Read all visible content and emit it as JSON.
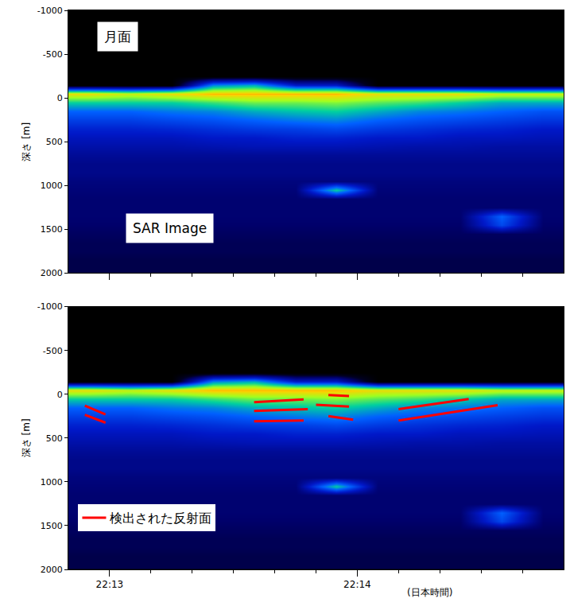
{
  "chart_data": [
    {
      "type": "heatmap",
      "labels": [
        "月面",
        "SAR Image"
      ],
      "ylabel": "深さ [m]",
      "x": [
        -5,
        5,
        15,
        25,
        35,
        45,
        55,
        65,
        75,
        85,
        95,
        105
      ],
      "y": [
        -950,
        -850,
        -750,
        -650,
        -550,
        -450,
        -350,
        -250,
        -150,
        -50,
        50,
        150,
        250,
        350,
        450,
        550,
        650,
        750,
        850,
        950,
        1050,
        1150,
        1250,
        1350,
        1450,
        1550,
        1650,
        1750,
        1850,
        1950
      ],
      "z": [
        [
          0,
          0,
          0,
          0,
          0,
          0,
          0,
          0,
          0,
          0,
          0,
          0
        ],
        [
          0,
          0,
          0,
          0,
          0,
          0,
          0,
          0,
          0,
          0,
          0,
          0
        ],
        [
          0,
          0,
          0,
          0,
          0,
          0,
          0,
          0,
          0,
          0,
          0,
          0
        ],
        [
          0,
          0,
          0,
          0,
          0,
          0,
          0,
          0,
          0,
          0,
          0,
          0
        ],
        [
          0,
          0,
          0,
          0,
          0,
          0,
          0,
          0,
          0,
          0,
          0,
          0
        ],
        [
          0,
          0,
          0,
          0,
          0,
          0,
          0,
          0,
          0,
          0,
          0,
          0
        ],
        [
          0,
          0,
          0,
          0,
          0,
          0,
          0,
          0,
          0,
          0,
          0,
          0
        ],
        [
          0,
          0,
          0,
          0,
          0,
          0,
          0,
          0,
          0,
          0,
          0,
          0
        ],
        [
          0,
          0,
          0,
          0.5,
          0.55,
          0.3,
          0.3,
          0,
          0,
          0,
          0,
          0
        ],
        [
          0.85,
          0.8,
          0.85,
          0.9,
          0.9,
          0.9,
          0.9,
          0.85,
          0.85,
          0.85,
          0.8,
          0.8
        ],
        [
          0.6,
          0.6,
          0.6,
          0.65,
          0.7,
          0.7,
          0.72,
          0.68,
          0.65,
          0.6,
          0.55,
          0.55
        ],
        [
          0.45,
          0.45,
          0.48,
          0.5,
          0.55,
          0.58,
          0.6,
          0.55,
          0.5,
          0.48,
          0.45,
          0.42
        ],
        [
          0.38,
          0.38,
          0.4,
          0.42,
          0.45,
          0.48,
          0.5,
          0.45,
          0.42,
          0.4,
          0.38,
          0.36
        ],
        [
          0.32,
          0.32,
          0.33,
          0.35,
          0.37,
          0.38,
          0.4,
          0.37,
          0.35,
          0.33,
          0.32,
          0.3
        ],
        [
          0.28,
          0.28,
          0.28,
          0.3,
          0.3,
          0.32,
          0.32,
          0.3,
          0.3,
          0.28,
          0.28,
          0.27
        ],
        [
          0.25,
          0.25,
          0.25,
          0.26,
          0.27,
          0.27,
          0.27,
          0.26,
          0.25,
          0.25,
          0.24,
          0.24
        ],
        [
          0.22,
          0.22,
          0.22,
          0.22,
          0.22,
          0.22,
          0.22,
          0.22,
          0.22,
          0.22,
          0.22,
          0.22
        ],
        [
          0.2,
          0.2,
          0.2,
          0.2,
          0.2,
          0.2,
          0.2,
          0.2,
          0.2,
          0.2,
          0.2,
          0.2
        ],
        [
          0.2,
          0.2,
          0.2,
          0.2,
          0.2,
          0.2,
          0.2,
          0.2,
          0.2,
          0.2,
          0.2,
          0.2
        ],
        [
          0.18,
          0.18,
          0.18,
          0.18,
          0.18,
          0.18,
          0.18,
          0.18,
          0.18,
          0.18,
          0.18,
          0.18
        ],
        [
          0.17,
          0.17,
          0.17,
          0.17,
          0.17,
          0.17,
          0.6,
          0.17,
          0.17,
          0.17,
          0.17,
          0.17
        ],
        [
          0.16,
          0.16,
          0.16,
          0.16,
          0.16,
          0.16,
          0.16,
          0.16,
          0.16,
          0.16,
          0.16,
          0.16
        ],
        [
          0.16,
          0.16,
          0.16,
          0.16,
          0.16,
          0.16,
          0.16,
          0.16,
          0.16,
          0.16,
          0.16,
          0.16
        ],
        [
          0.16,
          0.16,
          0.16,
          0.16,
          0.16,
          0.16,
          0.16,
          0.16,
          0.16,
          0.16,
          0.45,
          0.16
        ],
        [
          0.15,
          0.15,
          0.15,
          0.15,
          0.15,
          0.15,
          0.15,
          0.15,
          0.15,
          0.15,
          0.4,
          0.15
        ],
        [
          0.14,
          0.14,
          0.14,
          0.14,
          0.14,
          0.14,
          0.14,
          0.14,
          0.14,
          0.14,
          0.14,
          0.14
        ],
        [
          0.13,
          0.13,
          0.13,
          0.13,
          0.13,
          0.13,
          0.13,
          0.13,
          0.13,
          0.13,
          0.13,
          0.13
        ],
        [
          0.13,
          0.13,
          0.13,
          0.13,
          0.13,
          0.13,
          0.13,
          0.13,
          0.13,
          0.13,
          0.13,
          0.13
        ],
        [
          0.12,
          0.12,
          0.12,
          0.12,
          0.12,
          0.12,
          0.12,
          0.12,
          0.12,
          0.12,
          0.12,
          0.12
        ],
        [
          0.12,
          0.12,
          0.12,
          0.12,
          0.12,
          0.12,
          0.12,
          0.12,
          0.12,
          0.12,
          0.12,
          0.12
        ]
      ],
      "zlim": [
        0,
        1
      ],
      "xlim": [
        -10,
        110
      ],
      "xticks": [
        0,
        60
      ],
      "xticks_minor": [
        10,
        20,
        30,
        40,
        50,
        70,
        80,
        90,
        100
      ],
      "ylim": [
        2000,
        -1000
      ],
      "yticks": [
        -1000,
        -500,
        0,
        500,
        1000,
        1500,
        2000
      ],
      "tick_labels": "y"
    },
    {
      "type": "heatmap",
      "ylabel": "深さ [m]",
      "xlabel": "(日本時間)",
      "x": [
        -5,
        5,
        15,
        25,
        35,
        45,
        55,
        65,
        75,
        85,
        95,
        105
      ],
      "y": [
        -950,
        -850,
        -750,
        -650,
        -550,
        -450,
        -350,
        -250,
        -150,
        -50,
        50,
        150,
        250,
        350,
        450,
        550,
        650,
        750,
        850,
        950,
        1050,
        1150,
        1250,
        1350,
        1450,
        1550,
        1650,
        1750,
        1850,
        1950
      ],
      "z": [
        [
          0,
          0,
          0,
          0,
          0,
          0,
          0,
          0,
          0,
          0,
          0,
          0
        ],
        [
          0,
          0,
          0,
          0,
          0,
          0,
          0,
          0,
          0,
          0,
          0,
          0
        ],
        [
          0,
          0,
          0,
          0,
          0,
          0,
          0,
          0,
          0,
          0,
          0,
          0
        ],
        [
          0,
          0,
          0,
          0,
          0,
          0,
          0,
          0,
          0,
          0,
          0,
          0
        ],
        [
          0,
          0,
          0,
          0,
          0,
          0,
          0,
          0,
          0,
          0,
          0,
          0
        ],
        [
          0,
          0,
          0,
          0,
          0,
          0,
          0,
          0,
          0,
          0,
          0,
          0
        ],
        [
          0,
          0,
          0,
          0,
          0,
          0,
          0,
          0,
          0,
          0,
          0,
          0
        ],
        [
          0,
          0,
          0,
          0,
          0,
          0,
          0,
          0,
          0,
          0,
          0,
          0
        ],
        [
          0,
          0,
          0,
          0.5,
          0.55,
          0.3,
          0.3,
          0,
          0,
          0,
          0,
          0
        ],
        [
          0.85,
          0.8,
          0.85,
          0.9,
          0.9,
          0.9,
          0.9,
          0.85,
          0.85,
          0.85,
          0.8,
          0.8
        ],
        [
          0.6,
          0.6,
          0.6,
          0.65,
          0.7,
          0.7,
          0.72,
          0.68,
          0.65,
          0.6,
          0.55,
          0.55
        ],
        [
          0.45,
          0.45,
          0.48,
          0.5,
          0.55,
          0.58,
          0.6,
          0.55,
          0.5,
          0.48,
          0.45,
          0.42
        ],
        [
          0.38,
          0.38,
          0.4,
          0.42,
          0.45,
          0.48,
          0.5,
          0.45,
          0.42,
          0.4,
          0.38,
          0.36
        ],
        [
          0.32,
          0.32,
          0.33,
          0.35,
          0.37,
          0.38,
          0.4,
          0.37,
          0.35,
          0.33,
          0.32,
          0.3
        ],
        [
          0.28,
          0.28,
          0.28,
          0.3,
          0.3,
          0.32,
          0.32,
          0.3,
          0.3,
          0.28,
          0.28,
          0.27
        ],
        [
          0.25,
          0.25,
          0.25,
          0.26,
          0.27,
          0.27,
          0.27,
          0.26,
          0.25,
          0.25,
          0.24,
          0.24
        ],
        [
          0.22,
          0.22,
          0.22,
          0.22,
          0.22,
          0.22,
          0.22,
          0.22,
          0.22,
          0.22,
          0.22,
          0.22
        ],
        [
          0.2,
          0.2,
          0.2,
          0.2,
          0.2,
          0.2,
          0.2,
          0.2,
          0.2,
          0.2,
          0.2,
          0.2
        ],
        [
          0.2,
          0.2,
          0.2,
          0.2,
          0.2,
          0.2,
          0.2,
          0.2,
          0.2,
          0.2,
          0.2,
          0.2
        ],
        [
          0.18,
          0.18,
          0.18,
          0.18,
          0.18,
          0.18,
          0.18,
          0.18,
          0.18,
          0.18,
          0.18,
          0.18
        ],
        [
          0.17,
          0.17,
          0.17,
          0.17,
          0.17,
          0.17,
          0.6,
          0.17,
          0.17,
          0.17,
          0.17,
          0.17
        ],
        [
          0.16,
          0.16,
          0.16,
          0.16,
          0.16,
          0.16,
          0.16,
          0.16,
          0.16,
          0.16,
          0.16,
          0.16
        ],
        [
          0.16,
          0.16,
          0.16,
          0.16,
          0.16,
          0.16,
          0.16,
          0.16,
          0.16,
          0.16,
          0.16,
          0.16
        ],
        [
          0.16,
          0.16,
          0.16,
          0.16,
          0.16,
          0.16,
          0.16,
          0.16,
          0.16,
          0.16,
          0.45,
          0.16
        ],
        [
          0.15,
          0.15,
          0.15,
          0.15,
          0.15,
          0.15,
          0.15,
          0.15,
          0.15,
          0.15,
          0.4,
          0.15
        ],
        [
          0.14,
          0.14,
          0.14,
          0.14,
          0.14,
          0.14,
          0.14,
          0.14,
          0.14,
          0.14,
          0.14,
          0.14
        ],
        [
          0.13,
          0.13,
          0.13,
          0.13,
          0.13,
          0.13,
          0.13,
          0.13,
          0.13,
          0.13,
          0.13,
          0.13
        ],
        [
          0.13,
          0.13,
          0.13,
          0.13,
          0.13,
          0.13,
          0.13,
          0.13,
          0.13,
          0.13,
          0.13,
          0.13
        ],
        [
          0.12,
          0.12,
          0.12,
          0.12,
          0.12,
          0.12,
          0.12,
          0.12,
          0.12,
          0.12,
          0.12,
          0.12
        ],
        [
          0.12,
          0.12,
          0.12,
          0.12,
          0.12,
          0.12,
          0.12,
          0.12,
          0.12,
          0.12,
          0.12,
          0.12
        ]
      ],
      "zlim": [
        0,
        1
      ],
      "xlim": [
        -10,
        110
      ],
      "xticks": [
        {
          "value": 0,
          "label": "22:13"
        },
        {
          "value": 60,
          "label": "22:14"
        }
      ],
      "xticks_minor": [
        10,
        20,
        30,
        40,
        50,
        70,
        80,
        90,
        100
      ],
      "ylim": [
        2000,
        -1000
      ],
      "yticks": [
        -1000,
        -500,
        0,
        500,
        1000,
        1500,
        2000
      ],
      "legend": "lower left",
      "series": [
        {
          "name": "検出された反射面",
          "type": "line",
          "color": "#ff0000",
          "x": [
            -6,
            -1,
            null,
            -6,
            -1,
            null,
            35,
            47,
            null,
            35,
            48,
            null,
            35,
            47,
            null,
            53,
            58,
            null,
            50,
            58,
            null,
            53,
            59,
            null,
            70,
            87,
            null,
            70,
            94
          ],
          "values": [
            130,
            230,
            null,
            235,
            325,
            null,
            90,
            60,
            null,
            190,
            170,
            null,
            310,
            300,
            null,
            10,
            20,
            null,
            120,
            140,
            null,
            250,
            290,
            null,
            170,
            55,
            null,
            300,
            125
          ]
        }
      ]
    }
  ]
}
